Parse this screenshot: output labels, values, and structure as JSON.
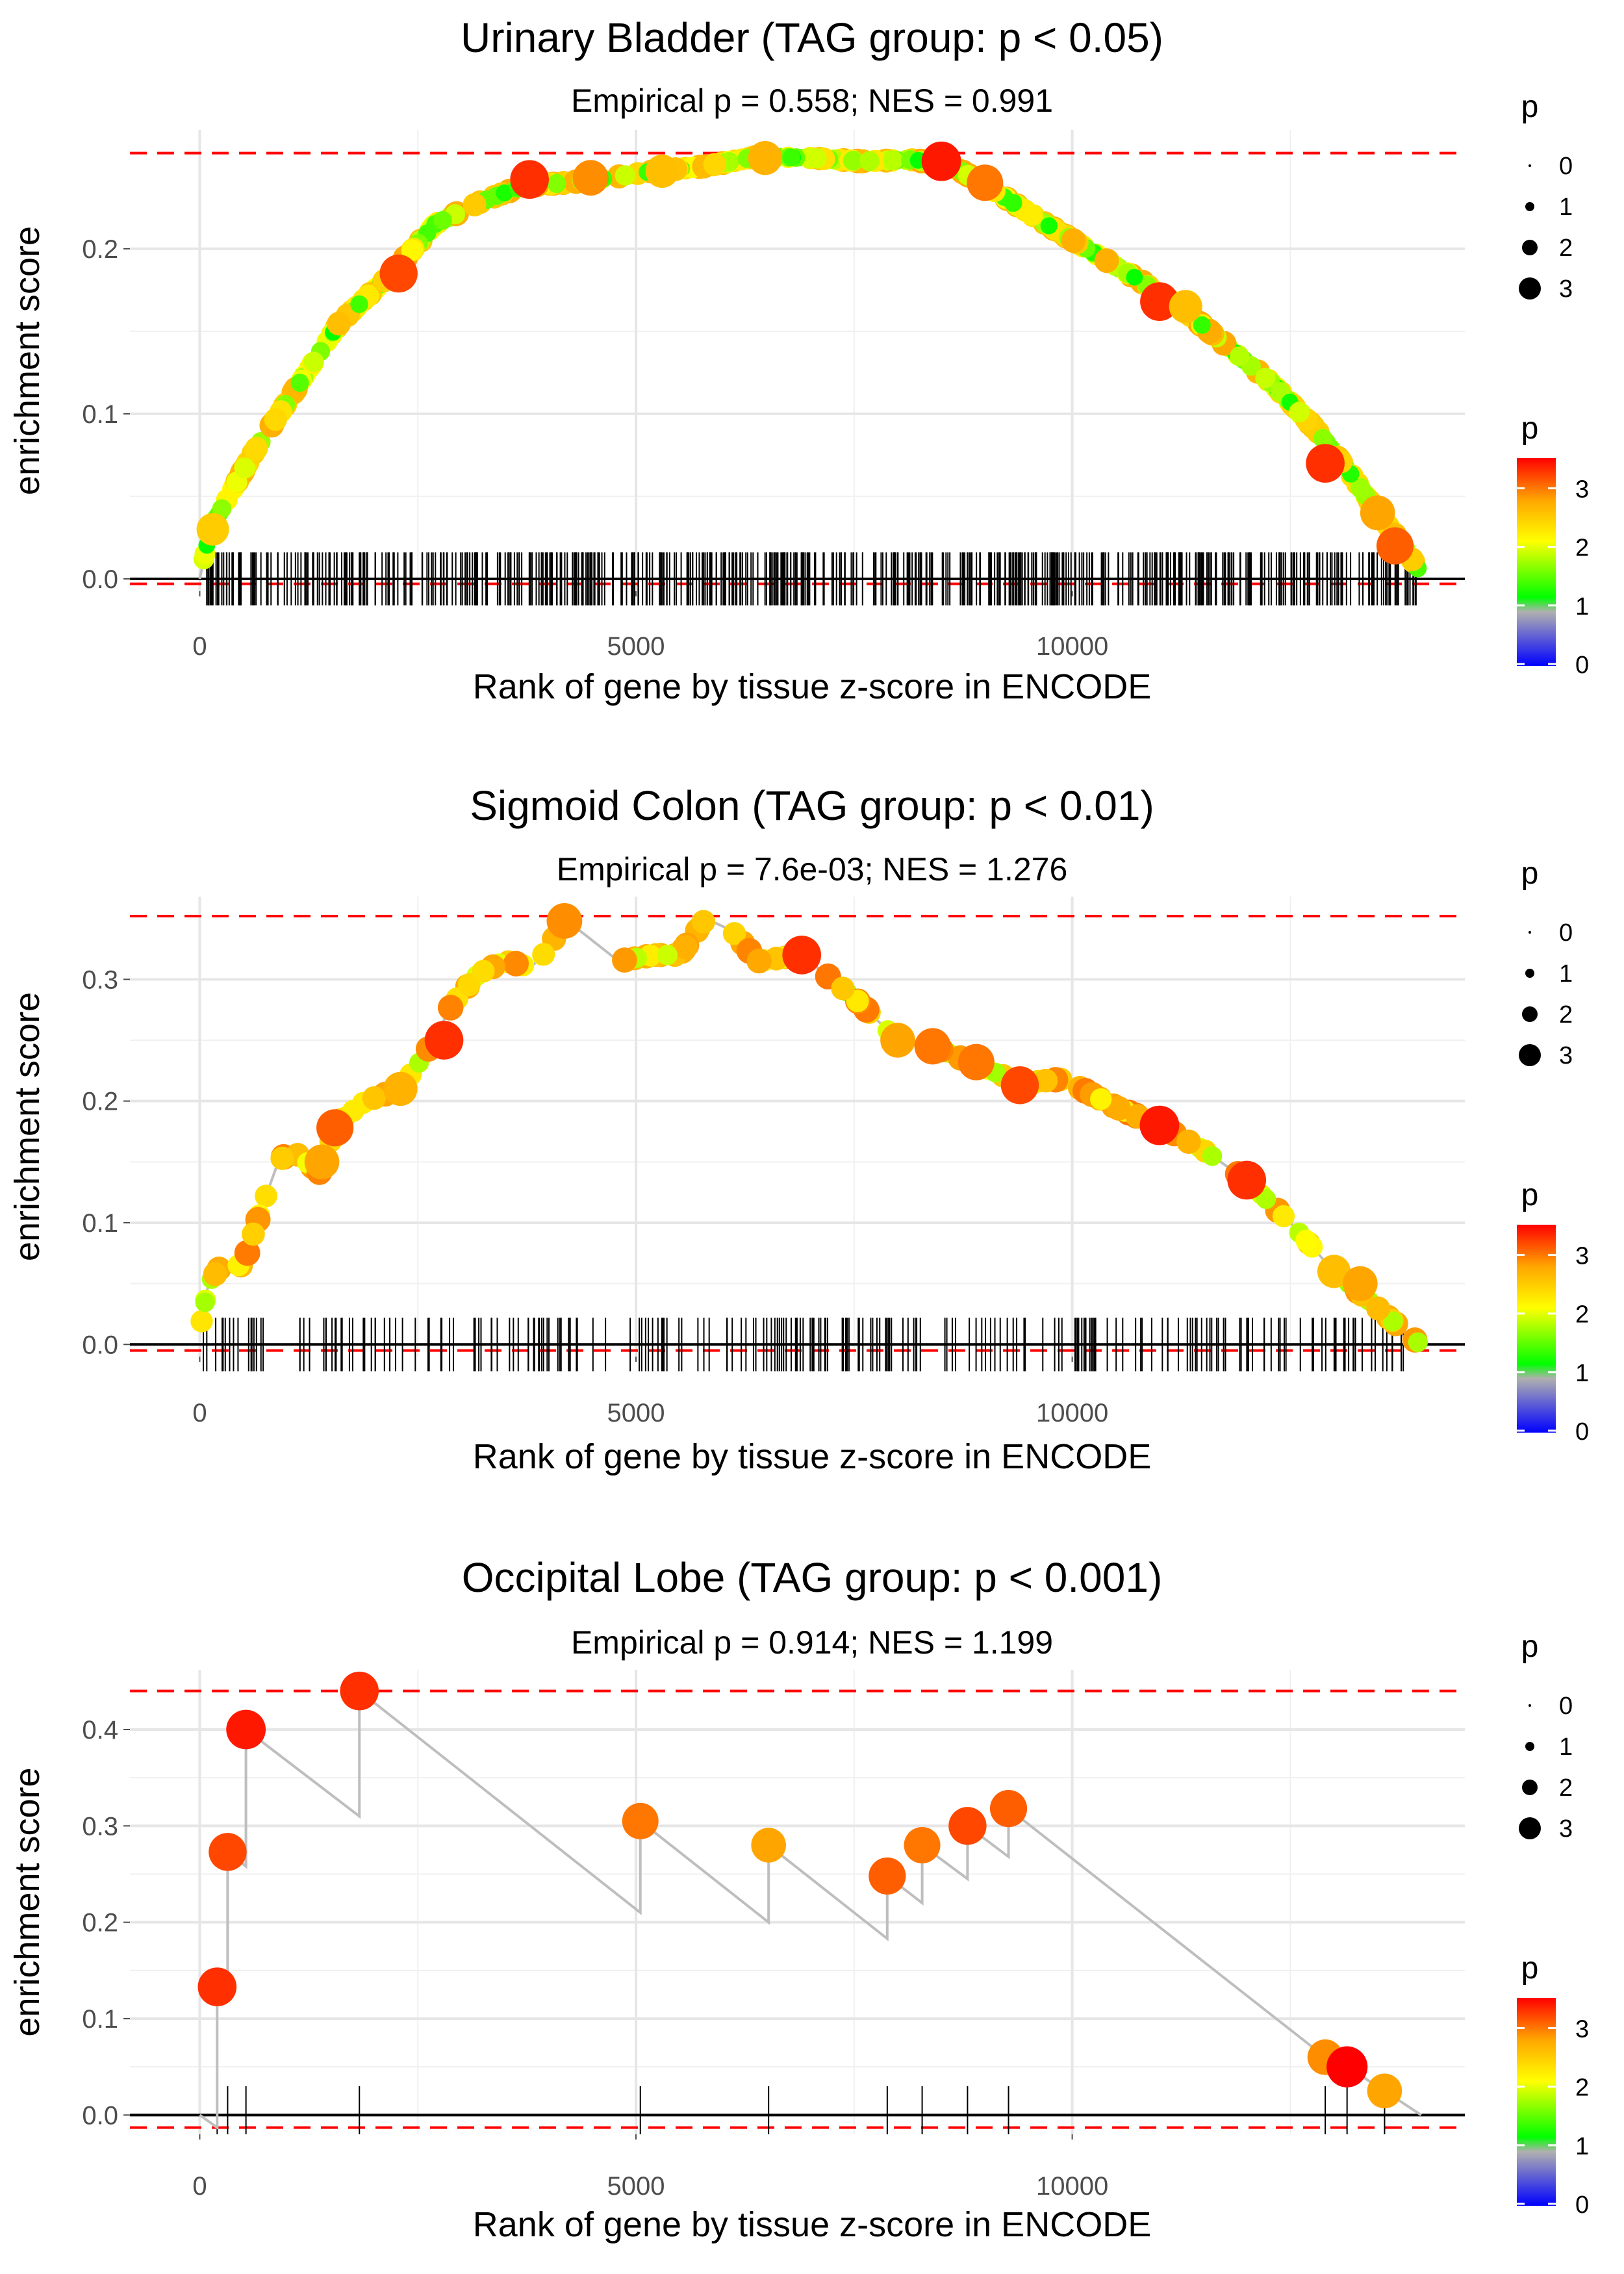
{
  "chart_data": [
    {
      "type": "line",
      "title": "Urinary Bladder (TAG group: p < 0.05)",
      "subtitle": "Empirical p = 0.558; NES = 0.991",
      "xlabel": "Rank of gene by tissue z-score in ENCODE",
      "ylabel": "enrichment score",
      "xlim": [
        -800,
        14500
      ],
      "ylim": [
        -0.0075,
        0.272
      ],
      "xticks": [
        0,
        5000,
        10000
      ],
      "xtick_labels": [
        "0",
        "5000",
        "10000"
      ],
      "yticks": [
        0,
        0.1,
        0.2
      ],
      "ytick_labels": [
        "0.0",
        "0.1",
        "0.2"
      ],
      "max_es": 0.258,
      "min_es": -0.003,
      "gene_rank_max": 14000,
      "hit_density": "dense",
      "curve": [
        [
          0,
          0
        ],
        [
          120,
          0.03
        ],
        [
          600,
          0.075
        ],
        [
          1100,
          0.115
        ],
        [
          1600,
          0.155
        ],
        [
          2200,
          0.185
        ],
        [
          2700,
          0.215
        ],
        [
          3200,
          0.228
        ],
        [
          3700,
          0.238
        ],
        [
          4200,
          0.24
        ],
        [
          4700,
          0.243
        ],
        [
          5200,
          0.247
        ],
        [
          5800,
          0.25
        ],
        [
          6400,
          0.256
        ],
        [
          7000,
          0.255
        ],
        [
          7600,
          0.253
        ],
        [
          8200,
          0.254
        ],
        [
          8700,
          0.248
        ],
        [
          9200,
          0.232
        ],
        [
          9700,
          0.215
        ],
        [
          10200,
          0.199
        ],
        [
          10800,
          0.18
        ],
        [
          11300,
          0.162
        ],
        [
          11800,
          0.14
        ],
        [
          12300,
          0.118
        ],
        [
          12800,
          0.09
        ],
        [
          13200,
          0.063
        ],
        [
          13500,
          0.04
        ],
        [
          13800,
          0.02
        ],
        [
          14000,
          0.003
        ]
      ],
      "highlight_points": [
        [
          150,
          0.03,
          2.5
        ],
        [
          2280,
          0.185,
          3.2
        ],
        [
          3780,
          0.242,
          3.3
        ],
        [
          4480,
          0.243,
          2.9
        ],
        [
          5300,
          0.247,
          2.6
        ],
        [
          6480,
          0.255,
          2.7
        ],
        [
          8500,
          0.253,
          3.4
        ],
        [
          9000,
          0.24,
          3.0
        ],
        [
          11000,
          0.168,
          3.3
        ],
        [
          11300,
          0.165,
          2.6
        ],
        [
          12900,
          0.07,
          3.3
        ],
        [
          13500,
          0.04,
          2.8
        ],
        [
          13700,
          0.02,
          3.1
        ]
      ],
      "color_legend": {
        "title": "p",
        "ticks": [
          "0",
          "1",
          "2",
          "3"
        ]
      },
      "size_legend": {
        "title": "p",
        "labels": [
          "0",
          "1",
          "2",
          "3"
        ]
      }
    },
    {
      "type": "line",
      "title": "Sigmoid Colon (TAG group: p < 0.01)",
      "subtitle": "Empirical p = 7.6e-03; NES = 1.276",
      "xlabel": "Rank of gene by tissue z-score in ENCODE",
      "ylabel": "enrichment score",
      "xlim": [
        -800,
        14500
      ],
      "ylim": [
        -0.01,
        0.368
      ],
      "xticks": [
        0,
        5000,
        10000
      ],
      "xtick_labels": [
        "0",
        "5000",
        "10000"
      ],
      "yticks": [
        0,
        0.1,
        0.2,
        0.3
      ],
      "ytick_labels": [
        "0.0",
        "0.1",
        "0.2",
        "0.3"
      ],
      "max_es": 0.352,
      "min_es": -0.005,
      "gene_rank_max": 14000,
      "hit_density": "medium",
      "curve": [
        [
          0,
          0.01
        ],
        [
          100,
          0.05
        ],
        [
          250,
          0.065
        ],
        [
          500,
          0.065
        ],
        [
          700,
          0.11
        ],
        [
          900,
          0.15
        ],
        [
          1050,
          0.16
        ],
        [
          1400,
          0.14
        ],
        [
          1550,
          0.18
        ],
        [
          1900,
          0.2
        ],
        [
          2300,
          0.21
        ],
        [
          2600,
          0.24
        ],
        [
          2900,
          0.28
        ],
        [
          3200,
          0.305
        ],
        [
          3500,
          0.315
        ],
        [
          3800,
          0.31
        ],
        [
          4000,
          0.325
        ],
        [
          4180,
          0.35
        ],
        [
          4800,
          0.315
        ],
        [
          5200,
          0.32
        ],
        [
          5500,
          0.32
        ],
        [
          5800,
          0.35
        ],
        [
          6100,
          0.34
        ],
        [
          6400,
          0.315
        ],
        [
          6900,
          0.32
        ],
        [
          7500,
          0.285
        ],
        [
          8000,
          0.25
        ],
        [
          8400,
          0.245
        ],
        [
          8900,
          0.23
        ],
        [
          9400,
          0.215
        ],
        [
          9900,
          0.218
        ],
        [
          10500,
          0.195
        ],
        [
          11000,
          0.18
        ],
        [
          11500,
          0.16
        ],
        [
          12000,
          0.135
        ],
        [
          12500,
          0.1
        ],
        [
          13000,
          0.06
        ],
        [
          13500,
          0.03
        ],
        [
          13900,
          0.005
        ],
        [
          14000,
          0
        ]
      ],
      "highlight_points": [
        [
          1400,
          0.15,
          2.8
        ],
        [
          1550,
          0.178,
          3.1
        ],
        [
          2300,
          0.21,
          2.7
        ],
        [
          2800,
          0.25,
          3.3
        ],
        [
          4180,
          0.348,
          2.9
        ],
        [
          6900,
          0.32,
          3.3
        ],
        [
          8000,
          0.25,
          2.8
        ],
        [
          8400,
          0.245,
          3.0
        ],
        [
          8900,
          0.232,
          3.0
        ],
        [
          9400,
          0.213,
          3.2
        ],
        [
          11000,
          0.18,
          3.4
        ],
        [
          12000,
          0.135,
          3.3
        ],
        [
          13000,
          0.06,
          2.6
        ],
        [
          13300,
          0.05,
          2.8
        ]
      ],
      "color_legend": {
        "title": "p",
        "ticks": [
          "0",
          "1",
          "2",
          "3"
        ]
      },
      "size_legend": {
        "title": "p",
        "labels": [
          "0",
          "1",
          "2",
          "3"
        ]
      }
    },
    {
      "type": "line",
      "title": "Occipital Lobe (TAG group: p < 0.001)",
      "subtitle": "Empirical p = 0.914; NES = 1.199",
      "xlabel": "Rank of gene by tissue z-score in ENCODE",
      "ylabel": "enrichment score",
      "xlim": [
        -800,
        14500
      ],
      "ylim": [
        -0.02,
        0.462
      ],
      "xticks": [
        0,
        5000,
        10000
      ],
      "xtick_labels": [
        "0",
        "5000",
        "10000"
      ],
      "yticks": [
        0,
        0.1,
        0.2,
        0.3,
        0.4
      ],
      "ytick_labels": [
        "0.0",
        "0.1",
        "0.2",
        "0.3",
        "0.4"
      ],
      "max_es": 0.44,
      "min_es": -0.013,
      "gene_rank_max": 14000,
      "hits": [
        200,
        320,
        530,
        1830,
        5050,
        6520,
        7880,
        8280,
        8800,
        9270,
        12900,
        13150,
        13580
      ],
      "curve": [
        [
          0,
          0
        ],
        [
          200,
          -0.013
        ],
        [
          200,
          0.133
        ],
        [
          320,
          0.125
        ],
        [
          320,
          0.273
        ],
        [
          530,
          0.258
        ],
        [
          530,
          0.4
        ],
        [
          1830,
          0.31
        ],
        [
          1830,
          0.44
        ],
        [
          5050,
          0.21
        ],
        [
          5050,
          0.305
        ],
        [
          6520,
          0.2
        ],
        [
          6520,
          0.28
        ],
        [
          7880,
          0.183
        ],
        [
          7880,
          0.248
        ],
        [
          8280,
          0.22
        ],
        [
          8280,
          0.28
        ],
        [
          8800,
          0.245
        ],
        [
          8800,
          0.3
        ],
        [
          9270,
          0.268
        ],
        [
          9270,
          0.318
        ],
        [
          12900,
          0.06
        ],
        [
          13150,
          0.05
        ],
        [
          13580,
          0.025
        ],
        [
          14000,
          0
        ]
      ],
      "highlight_points": [
        [
          200,
          0.133,
          3.3
        ],
        [
          320,
          0.273,
          3.2
        ],
        [
          530,
          0.4,
          3.4
        ],
        [
          1830,
          0.44,
          3.3
        ],
        [
          5050,
          0.305,
          3.0
        ],
        [
          6520,
          0.28,
          2.8
        ],
        [
          7880,
          0.248,
          3.1
        ],
        [
          8280,
          0.28,
          3.0
        ],
        [
          8800,
          0.3,
          3.2
        ],
        [
          9270,
          0.318,
          3.1
        ],
        [
          12900,
          0.06,
          2.9
        ],
        [
          13150,
          0.05,
          3.6
        ],
        [
          13580,
          0.025,
          2.8
        ]
      ],
      "color_legend": {
        "title": "p",
        "ticks": [
          "0",
          "1",
          "2",
          "3"
        ]
      },
      "size_legend": {
        "title": "p",
        "labels": [
          "0",
          "1",
          "2",
          "3"
        ]
      }
    }
  ]
}
